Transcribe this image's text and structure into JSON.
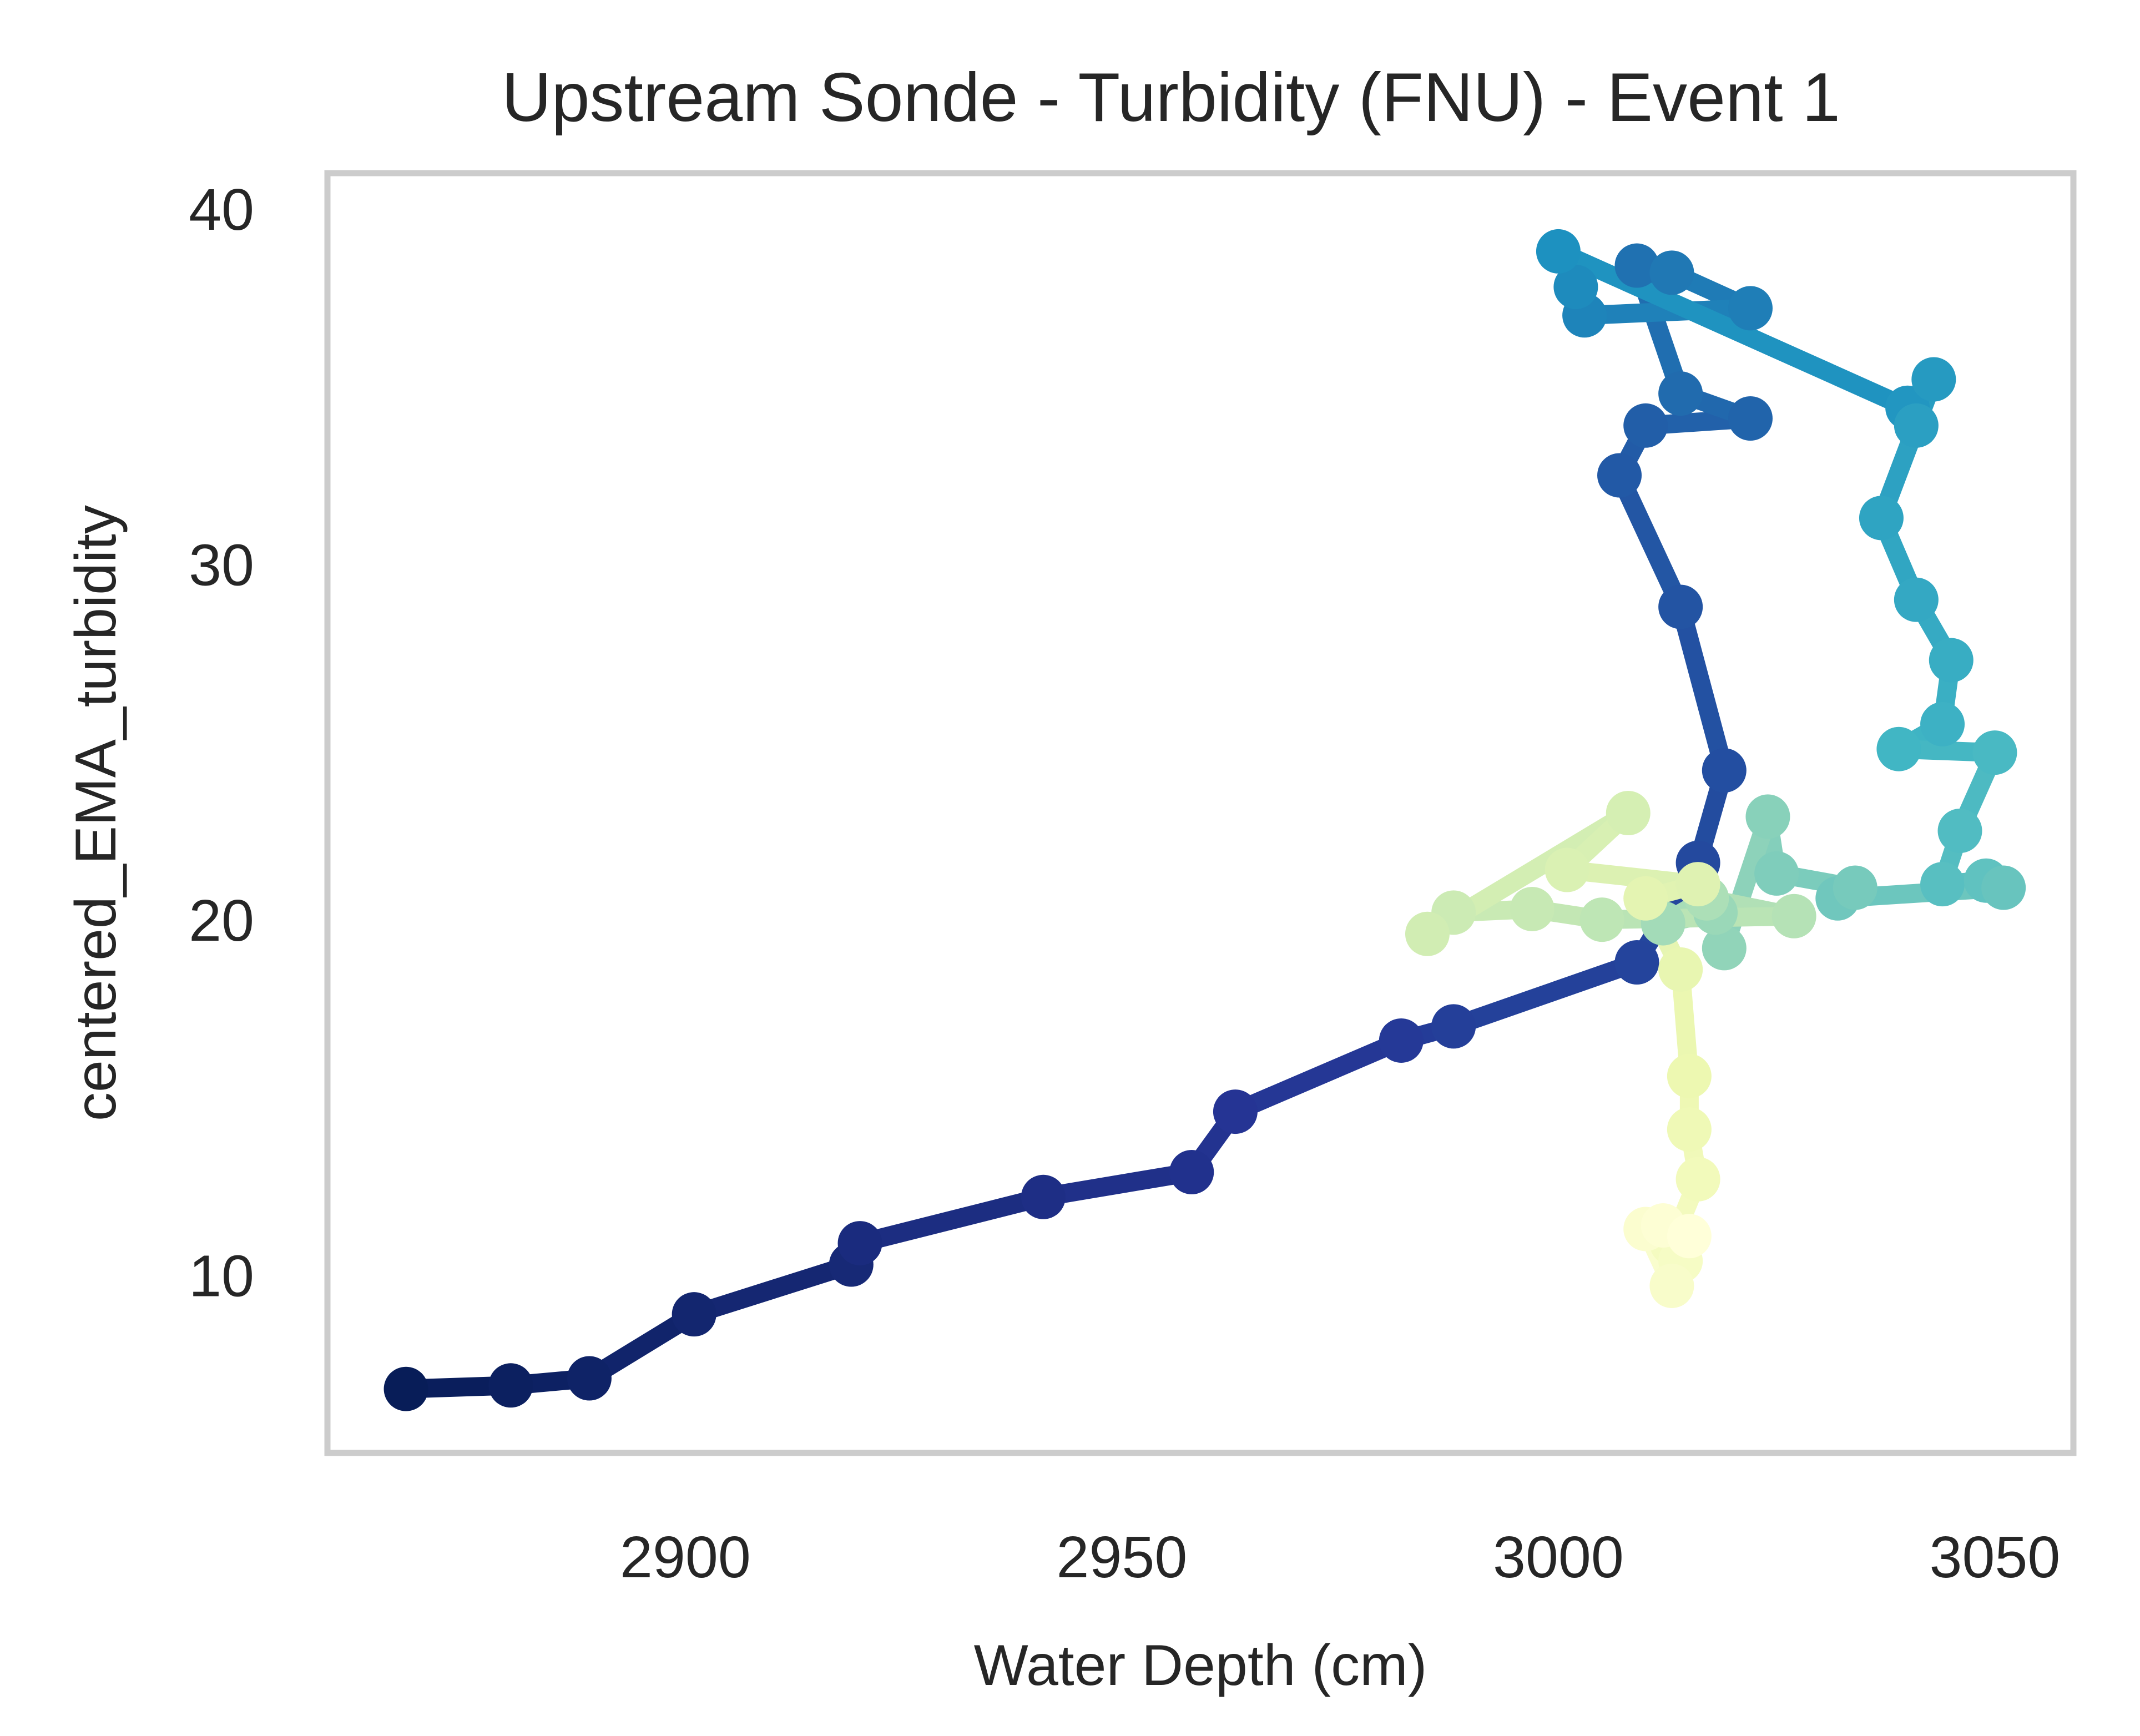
{
  "chart_data": {
    "type": "line",
    "title": "Upstream Sonde - Turbidity (FNU) - Event 1",
    "xlabel": "Water Depth (cm)",
    "ylabel": "centered_EMA_turbidity",
    "xlim": [
      2859,
      3059
    ],
    "ylim": [
      5,
      41
    ],
    "x_ticks": [
      2900,
      2950,
      3000,
      3050
    ],
    "y_ticks": [
      10,
      20,
      30,
      40
    ],
    "grid": false,
    "legend": "none",
    "colormap": "YlGnBu (point order: dark navy = first, pale yellow = last)",
    "series": [
      {
        "x": [
          2868,
          2880,
          2889,
          2901,
          2919,
          2920,
          2941,
          2958,
          2963,
          2982,
          2988,
          3009,
          3016,
          3019,
          3014,
          3007,
          3010,
          3022,
          3014,
          3009,
          3013,
          3022,
          3003,
          3002,
          3000,
          3040,
          3043,
          3041,
          3037,
          3041,
          3045,
          3044,
          3039,
          3050,
          3046,
          3044,
          3049,
          3051,
          3032,
          3034,
          3025,
          3024,
          3019,
          3018,
          3012,
          3017,
          3027,
          3005,
          2997,
          2988,
          2985,
          3008,
          3001,
          3016,
          3010,
          3014,
          3015,
          3015,
          3016,
          3013,
          3014,
          3013,
          3010,
          3012,
          3015
        ],
        "y": [
          6.8,
          6.9,
          7.1,
          8.9,
          10.3,
          10.9,
          12.2,
          12.9,
          14.6,
          16.6,
          17.0,
          18.8,
          21.6,
          24.2,
          28.8,
          32.5,
          33.9,
          34.1,
          34.8,
          38.4,
          38.2,
          37.2,
          37.0,
          37.8,
          38.8,
          34.4,
          35.2,
          33.9,
          31.3,
          29.0,
          27.3,
          25.5,
          24.8,
          24.7,
          22.5,
          21.0,
          21.1,
          20.9,
          20.6,
          20.9,
          21.3,
          22.9,
          19.2,
          20.2,
          19.9,
          20.6,
          20.1,
          20.0,
          20.3,
          20.2,
          19.6,
          23.0,
          21.4,
          21.0,
          20.6,
          18.6,
          15.6,
          14.1,
          12.7,
          10.9,
          10.4,
          9.7,
          11.3,
          11.4,
          11.1
        ]
      }
    ]
  }
}
